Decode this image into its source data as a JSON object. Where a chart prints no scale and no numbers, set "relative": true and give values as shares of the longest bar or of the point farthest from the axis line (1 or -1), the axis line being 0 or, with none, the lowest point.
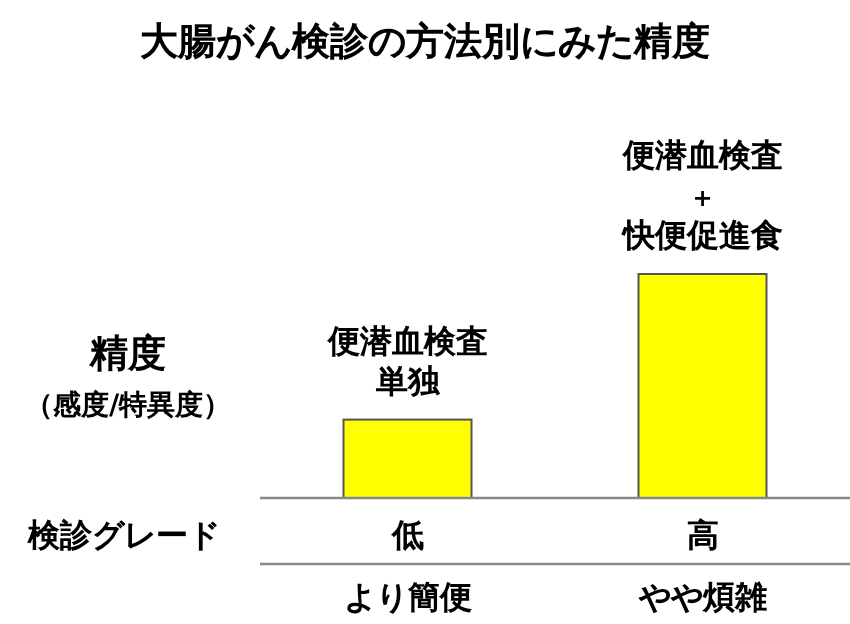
{
  "chart_data": {
    "type": "bar",
    "relative": true,
    "title": "大腸がん検診の方法別にみた精度",
    "ylabel": "精度（感度/特異度）",
    "xlabel": "検診グレード",
    "categories": [
      "低",
      "高"
    ],
    "values": [
      0.35,
      1
    ],
    "color": "#ffff00",
    "annotations": [
      {
        "text": "便潜血検査単独",
        "x": "低",
        "y": 0.35
      },
      {
        "text": "便潜血検査+快便促進食",
        "x": "高",
        "y": 1
      },
      "より簡便",
      "やや煩雑"
    ]
  }
}
